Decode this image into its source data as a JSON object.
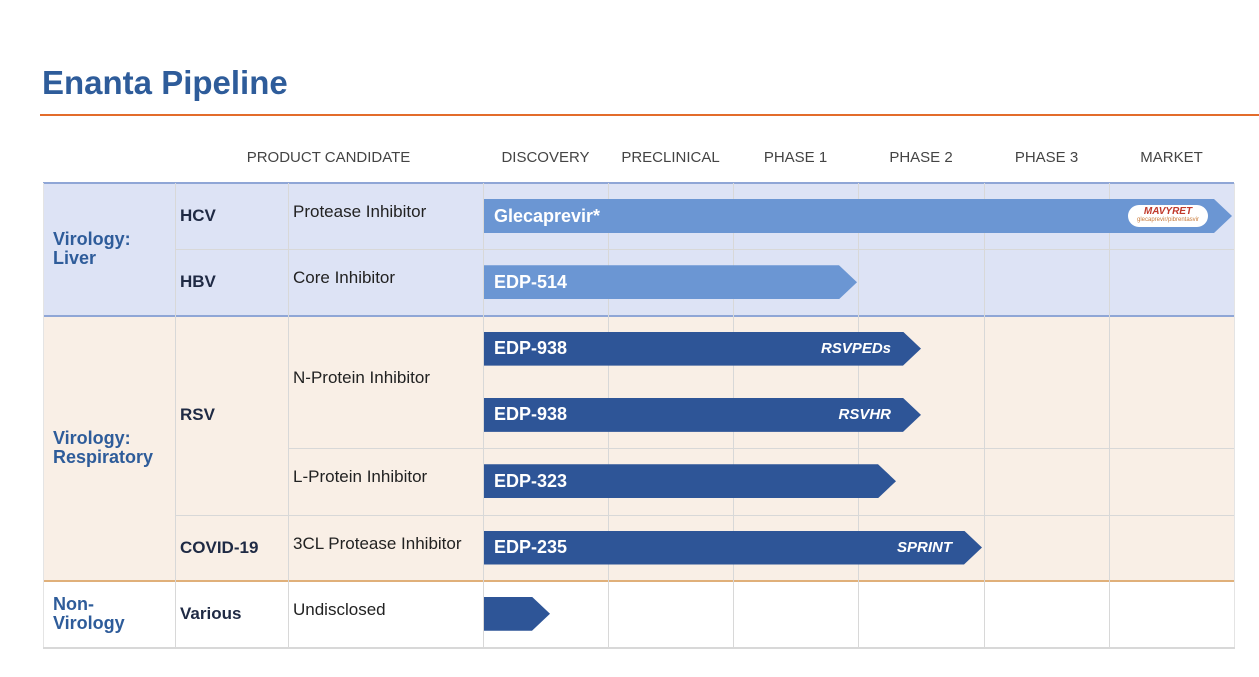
{
  "title": "Enanta Pipeline",
  "header": {
    "product_candidate": "PRODUCT CANDIDATE",
    "stages": [
      "DISCOVERY",
      "PRECLINICAL",
      "PHASE 1",
      "PHASE 2",
      "PHASE 3",
      "MARKET"
    ]
  },
  "groups": [
    {
      "label": "Virology: Liver",
      "diseases": [
        {
          "name": "HCV",
          "mechanisms": [
            {
              "name": "Protease Inhibitor",
              "programs": [
                {
                  "name": "Glecaprevir*",
                  "brand": "MAVYRET",
                  "brand_sub": "glecaprevir/pibrentasvir"
                }
              ]
            }
          ]
        },
        {
          "name": "HBV",
          "mechanisms": [
            {
              "name": "Core Inhibitor",
              "programs": [
                {
                  "name": "EDP-514"
                }
              ]
            }
          ]
        }
      ]
    },
    {
      "label": "Virology: Respiratory",
      "diseases": [
        {
          "name": "RSV",
          "mechanisms": [
            {
              "name": "N-Protein Inhibitor",
              "programs": [
                {
                  "name": "EDP-938",
                  "tag": "RSVPEDs"
                },
                {
                  "name": "EDP-938",
                  "tag": "RSVHR"
                }
              ]
            },
            {
              "name": "L-Protein Inhibitor",
              "programs": [
                {
                  "name": "EDP-323"
                }
              ]
            }
          ]
        },
        {
          "name": "COVID-19",
          "mechanisms": [
            {
              "name": "3CL Protease Inhibitor",
              "programs": [
                {
                  "name": "EDP-235",
                  "tag": "SPRINT"
                }
              ]
            }
          ]
        }
      ]
    },
    {
      "label": "Non-Virology",
      "diseases": [
        {
          "name": "Various",
          "mechanisms": [
            {
              "name": "Undisclosed",
              "programs": [
                {}
              ]
            }
          ]
        }
      ]
    }
  ]
}
